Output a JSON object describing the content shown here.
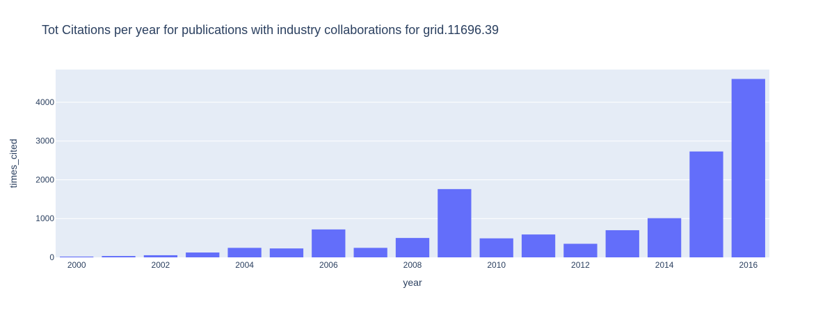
{
  "chart_data": {
    "type": "bar",
    "title": "Tot Citations per year for publications with industry collaborations for grid.11696.39",
    "xlabel": "year",
    "ylabel": "times_cited",
    "x": [
      2000,
      2001,
      2002,
      2003,
      2004,
      2005,
      2006,
      2007,
      2008,
      2009,
      2010,
      2011,
      2012,
      2013,
      2014,
      2015,
      2016
    ],
    "values": [
      20,
      35,
      55,
      125,
      245,
      230,
      720,
      245,
      500,
      1760,
      490,
      590,
      350,
      700,
      1010,
      2730,
      4600
    ],
    "xticks": [
      "2000",
      "2002",
      "2004",
      "2006",
      "2008",
      "2010",
      "2012",
      "2014",
      "2016"
    ],
    "yticks": [
      "0",
      "1000",
      "2000",
      "3000",
      "4000"
    ],
    "ylim": [
      0,
      4842
    ],
    "grid": true,
    "colors": {
      "bar": "#636efa",
      "plot_bg": "#e5ecf6",
      "grid": "#ffffff",
      "text": "#2a3f5f"
    }
  }
}
